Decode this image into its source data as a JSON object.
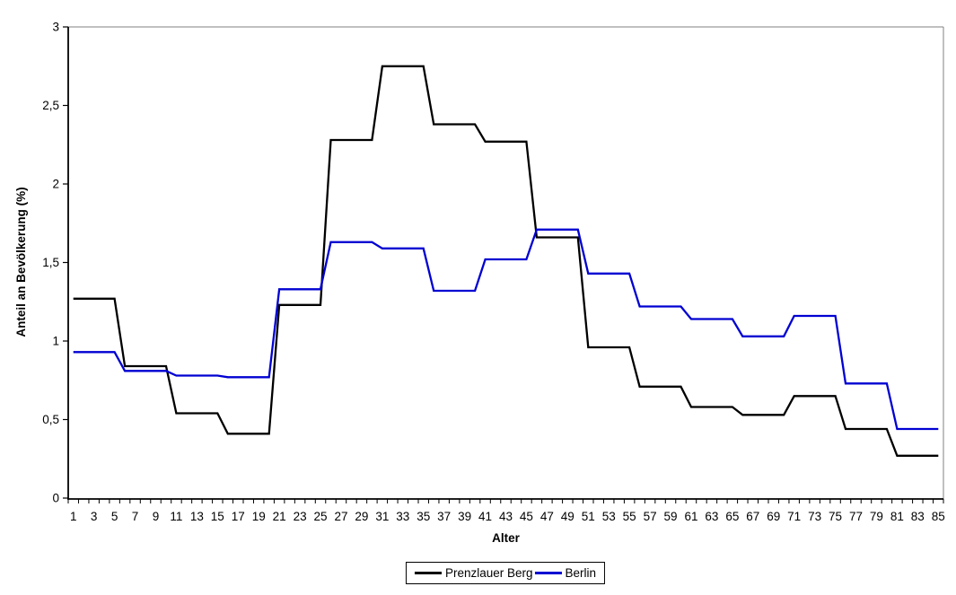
{
  "chart_data": {
    "type": "line",
    "step_style": "values constant within 5-year age bins, plotted for each single year of age",
    "title": "",
    "xlabel": "Alter",
    "ylabel": "Anteil an Bevölkerung (%)",
    "x_range": [
      1,
      85
    ],
    "ylim": [
      0,
      3
    ],
    "grid": false,
    "legend_position": "bottom-center",
    "decimal_separator": ",",
    "plot_border_color": "#808080",
    "axis_color": "#000000",
    "ytick_values": [
      0,
      0.5,
      1,
      1.5,
      2,
      2.5,
      3
    ],
    "ytick_labels": [
      "0",
      "0,5",
      "1",
      "1,5",
      "2",
      "2,5",
      "3"
    ],
    "xtick_labels": [
      "1",
      "3",
      "5",
      "7",
      "9",
      "11",
      "13",
      "15",
      "17",
      "19",
      "21",
      "23",
      "25",
      "27",
      "29",
      "31",
      "33",
      "35",
      "37",
      "39",
      "41",
      "43",
      "45",
      "47",
      "49",
      "51",
      "53",
      "55",
      "57",
      "59",
      "61",
      "63",
      "65",
      "67",
      "69",
      "71",
      "73",
      "75",
      "77",
      "79",
      "81",
      "83",
      "85"
    ],
    "age_bins": [
      "1-5",
      "6-10",
      "11-15",
      "16-20",
      "21-25",
      "26-30",
      "31-35",
      "36-40",
      "41-45",
      "46-50",
      "51-55",
      "56-60",
      "61-65",
      "66-70",
      "71-75",
      "76-80",
      "81-85"
    ],
    "series": [
      {
        "name": "Prenzlauer Berg",
        "color": "#000000",
        "bin_values": [
          1.27,
          0.84,
          0.54,
          0.41,
          1.23,
          2.28,
          2.75,
          2.38,
          2.27,
          1.66,
          0.96,
          0.71,
          0.58,
          0.53,
          0.65,
          0.44,
          0.27
        ]
      },
      {
        "name": "Berlin",
        "color": "#0000D2",
        "bin_values": [
          0.93,
          0.81,
          0.78,
          0.77,
          1.33,
          1.63,
          1.59,
          1.32,
          1.52,
          1.71,
          1.43,
          1.22,
          1.14,
          1.03,
          1.16,
          0.73,
          0.44
        ]
      }
    ]
  }
}
